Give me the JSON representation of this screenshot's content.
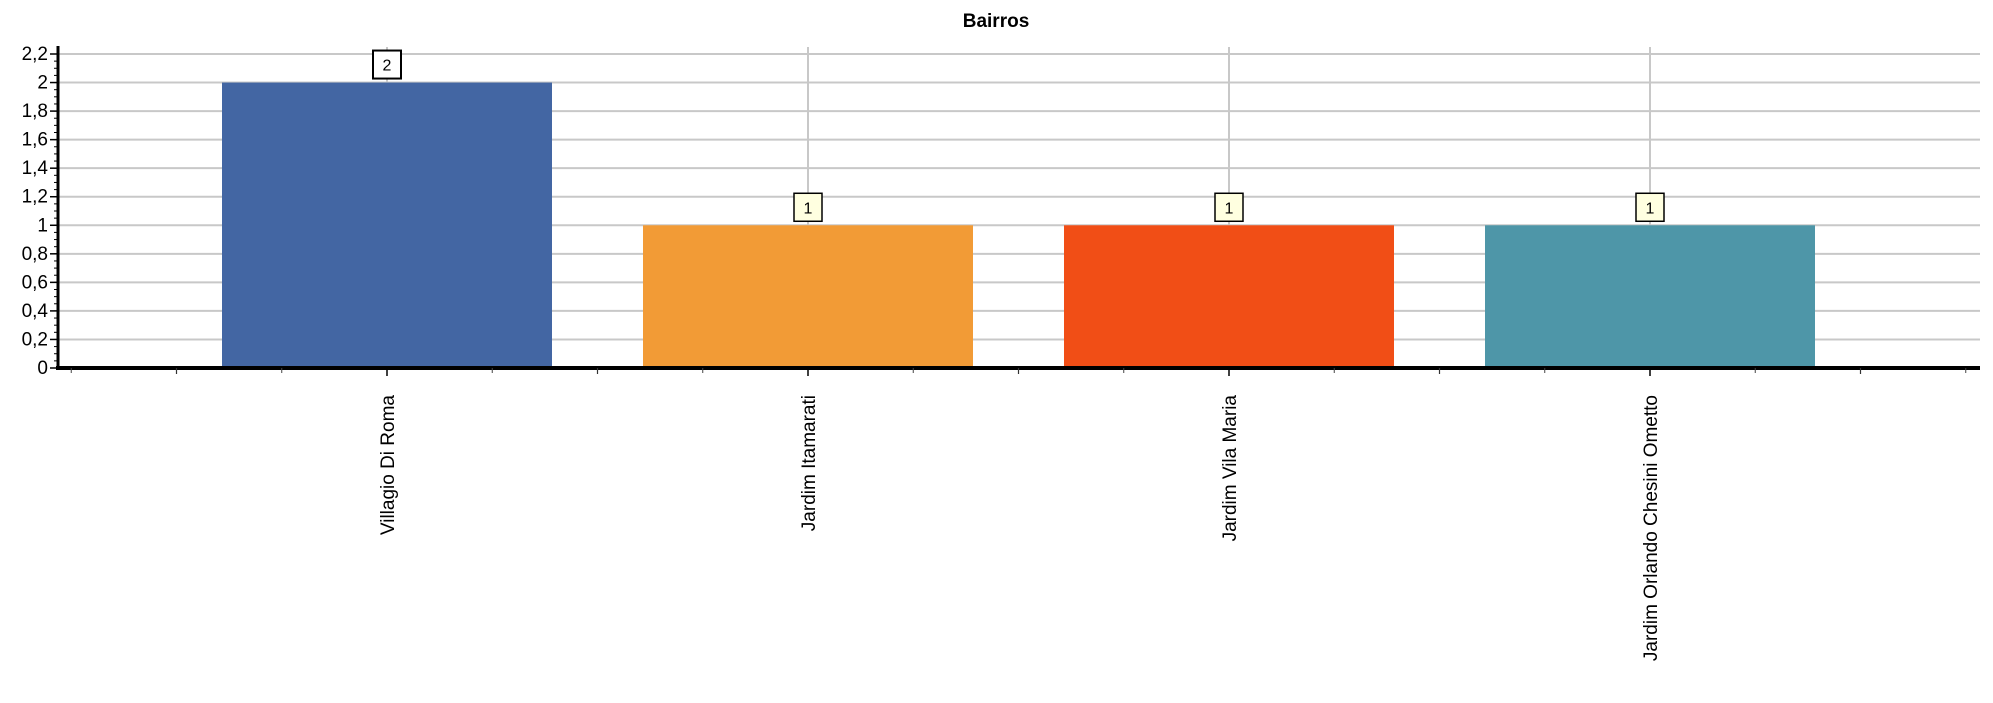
{
  "chart_data": {
    "type": "bar",
    "title": "Bairros",
    "xlabel": "",
    "ylabel": "",
    "categories": [
      "Villagio Di Roma",
      "Jardim Itamarati",
      "Jardim Vila Maria",
      "Jardim Orlando Chesini Ometto"
    ],
    "values": [
      2,
      1,
      1,
      1
    ],
    "data_labels": [
      "2",
      "1",
      "1",
      "1"
    ],
    "colors": [
      "#4366a3",
      "#f29b36",
      "#f14e16",
      "#4e96a8"
    ],
    "ylim": [
      0,
      2.2
    ],
    "y_ticks": [
      0,
      0.2,
      0.4,
      0.6,
      0.8,
      1,
      1.2,
      1.4,
      1.6,
      1.8,
      2,
      2.2
    ],
    "y_tick_labels": [
      "0",
      "0,2",
      "0,4",
      "0,6",
      "0,8",
      "1",
      "1,2",
      "1,4",
      "1,6",
      "1,8",
      "2",
      "2,2"
    ],
    "grid": true,
    "legend": "none",
    "label_colors": {
      "default": {
        "fill": "#ffffe0",
        "stroke": "#000000"
      },
      "highlight": {
        "fill": "#ffffff",
        "stroke": "#000000"
      }
    }
  }
}
